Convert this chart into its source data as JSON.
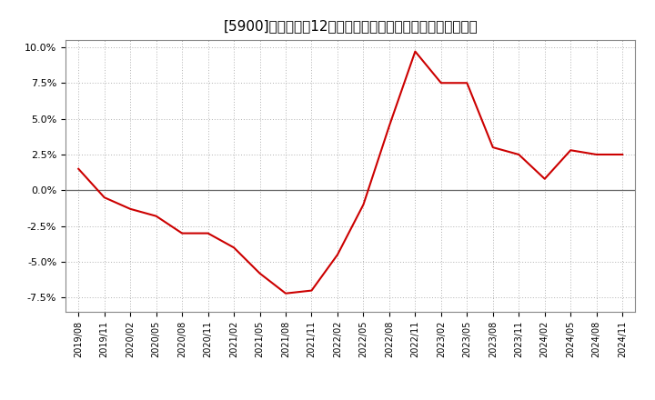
{
  "title": "[5900]　売上高の12か月移動合計の対前年同期増減率の推移",
  "line_color": "#cc0000",
  "background_color": "#ffffff",
  "plot_bg_color": "#ffffff",
  "grid_color": "#b0b0b0",
  "ylim": [
    -0.085,
    0.105
  ],
  "yticks": [
    -0.075,
    -0.05,
    -0.025,
    0.0,
    0.025,
    0.05,
    0.075,
    0.1
  ],
  "dates": [
    "2019/08",
    "2019/11",
    "2020/02",
    "2020/05",
    "2020/08",
    "2020/11",
    "2021/02",
    "2021/05",
    "2021/08",
    "2021/11",
    "2022/02",
    "2022/05",
    "2022/08",
    "2022/11",
    "2023/02",
    "2023/05",
    "2023/08",
    "2023/11",
    "2024/02",
    "2024/05",
    "2024/08",
    "2024/11"
  ],
  "values": [
    0.015,
    -0.005,
    -0.013,
    -0.018,
    -0.03,
    -0.03,
    -0.04,
    -0.058,
    -0.072,
    -0.07,
    -0.045,
    -0.01,
    0.045,
    0.097,
    0.075,
    0.075,
    0.03,
    0.025,
    0.008,
    0.028,
    0.025,
    0.025
  ],
  "title_fontsize": 11,
  "tick_fontsize": 8,
  "xtick_fontsize": 7
}
